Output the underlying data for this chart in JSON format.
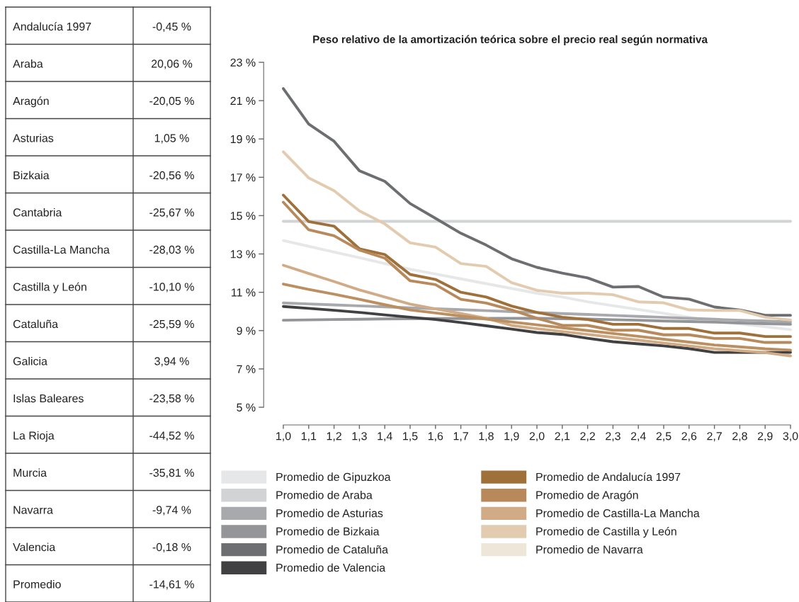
{
  "chart_data": [
    {
      "type": "other",
      "categories": [
        "Andalucía 1997",
        "Araba",
        "Aragón",
        "Asturias",
        "Bizkaia",
        "Cantabria",
        "Castilla-La Mancha",
        "Castilla y León",
        "Cataluña",
        "Galicia",
        "Islas Baleares",
        "La Rioja",
        "Murcia",
        "Navarra",
        "Valencia",
        "Promedio"
      ],
      "value_labels": [
        "-0,45 %",
        "20,06 %",
        "-20,05 %",
        "1,05 %",
        "-20,56 %",
        "-25,67 %",
        "-28,03 %",
        "-10,10 %",
        "-25,59 %",
        "3,94 %",
        "-23,58 %",
        "-44,52 %",
        "-35,81 %",
        "-9,74 %",
        "-0,18 %",
        "-14,61 %"
      ]
    },
    {
      "type": "line",
      "title": "Peso relativo de la amortización teórica sobre el precio real según normativa",
      "x": [
        1.0,
        1.1,
        1.2,
        1.3,
        1.4,
        1.5,
        1.6,
        1.7,
        1.8,
        1.9,
        2.0,
        2.1,
        2.2,
        2.3,
        2.4,
        2.5,
        2.6,
        2.7,
        2.8,
        2.9,
        3.0
      ],
      "xlim": [
        1.0,
        3.0
      ],
      "xticks": [
        {
          "value": 1.0,
          "label": "1,0"
        },
        {
          "value": 1.1,
          "label": "1,1"
        },
        {
          "value": 1.2,
          "label": "1,2"
        },
        {
          "value": 1.3,
          "label": "1,3"
        },
        {
          "value": 1.4,
          "label": "1,4"
        },
        {
          "value": 1.5,
          "label": "1,5"
        },
        {
          "value": 1.6,
          "label": "1,6"
        },
        {
          "value": 1.7,
          "label": "1,7"
        },
        {
          "value": 1.8,
          "label": "1,8"
        },
        {
          "value": 1.9,
          "label": "1,9"
        },
        {
          "value": 2.0,
          "label": "2,0"
        },
        {
          "value": 2.1,
          "label": "2,1"
        },
        {
          "value": 2.2,
          "label": "2,2"
        },
        {
          "value": 2.3,
          "label": "2,3"
        },
        {
          "value": 2.4,
          "label": "2,4"
        },
        {
          "value": 2.5,
          "label": "2,5"
        },
        {
          "value": 2.6,
          "label": "2,6"
        },
        {
          "value": 2.7,
          "label": "2,7"
        },
        {
          "value": 2.8,
          "label": "2,8"
        },
        {
          "value": 2.9,
          "label": "2,9"
        },
        {
          "value": 3.0,
          "label": "3,0"
        }
      ],
      "ylim": [
        5,
        23
      ],
      "yticks": [
        {
          "value": 5,
          "label": "5 %"
        },
        {
          "value": 7,
          "label": "7 %"
        },
        {
          "value": 9,
          "label": "9 %"
        },
        {
          "value": 11,
          "label": "11 %"
        },
        {
          "value": 13,
          "label": "13 %"
        },
        {
          "value": 15,
          "label": "15 %"
        },
        {
          "value": 17,
          "label": "17 %"
        },
        {
          "value": 19,
          "label": "19 %"
        },
        {
          "value": 21,
          "label": "21 %"
        },
        {
          "value": 23,
          "label": "23 %"
        }
      ],
      "grid": false,
      "legend": "bottom",
      "marker": "none",
      "line_style": "solid",
      "series": [
        {
          "name": "Promedio de Gipuzkoa",
          "color": "#e6e7e8",
          "values": [
            13.7,
            13.4,
            13.1,
            12.8,
            12.5,
            12.2,
            11.95,
            11.7,
            11.45,
            11.2,
            10.95,
            10.75,
            10.5,
            10.3,
            10.1,
            9.9,
            9.7,
            9.5,
            9.35,
            9.2,
            9.05
          ]
        },
        {
          "name": "Promedio de Araba",
          "color": "#d1d3d4",
          "values": [
            14.7,
            14.7,
            14.7,
            14.7,
            14.7,
            14.7,
            14.7,
            14.7,
            14.7,
            14.7,
            14.7,
            14.7,
            14.7,
            14.7,
            14.7,
            14.7,
            14.7,
            14.7,
            14.7,
            14.7,
            14.7
          ]
        },
        {
          "name": "Promedio de Asturias",
          "color": "#a7a9ac",
          "values": [
            10.44,
            10.39,
            10.34,
            10.29,
            10.24,
            10.19,
            10.14,
            10.09,
            10.04,
            9.99,
            9.94,
            9.89,
            9.84,
            9.79,
            9.74,
            9.69,
            9.64,
            9.59,
            9.54,
            9.5,
            9.45
          ]
        },
        {
          "name": "Promedio de Bizkaia",
          "color": "#939598",
          "values": [
            9.54,
            9.56,
            9.58,
            9.59,
            9.61,
            9.62,
            9.63,
            9.63,
            9.64,
            9.64,
            9.64,
            9.62,
            9.6,
            9.57,
            9.54,
            9.5,
            9.47,
            9.44,
            9.4,
            9.36,
            9.33
          ]
        },
        {
          "name": "Promedio de Cataluña",
          "color": "#6d6e71",
          "values": [
            21.63,
            19.78,
            18.88,
            17.34,
            16.79,
            15.63,
            14.86,
            14.08,
            13.46,
            12.75,
            12.3,
            12.0,
            11.75,
            11.27,
            11.3,
            10.75,
            10.64,
            10.23,
            10.08,
            9.8,
            9.8
          ]
        },
        {
          "name": "Promedio de Valencia",
          "color": "#414042",
          "values": [
            10.26,
            10.16,
            10.06,
            9.95,
            9.82,
            9.7,
            9.58,
            9.42,
            9.25,
            9.08,
            8.9,
            8.8,
            8.6,
            8.42,
            8.31,
            8.2,
            8.06,
            7.86,
            7.86,
            7.86,
            7.86
          ]
        },
        {
          "name": "Promedio de Andalucía 1997",
          "color": "#a0703a",
          "values": [
            16.07,
            14.69,
            14.45,
            13.27,
            12.97,
            11.93,
            11.67,
            11.0,
            10.75,
            10.28,
            9.95,
            9.7,
            9.58,
            9.33,
            9.33,
            9.11,
            9.11,
            8.87,
            8.87,
            8.69,
            8.69
          ]
        },
        {
          "name": "Promedio de Aragón",
          "color": "#b8895a",
          "values": [
            15.7,
            14.26,
            13.95,
            13.2,
            12.78,
            11.6,
            11.4,
            10.63,
            10.44,
            10.08,
            9.64,
            9.27,
            9.27,
            9.02,
            9.02,
            8.78,
            8.78,
            8.59,
            8.59,
            8.38,
            8.38
          ]
        },
        {
          "name": "Promedio de Castilla-La Mancha",
          "color": "#d1ab86",
          "values": [
            12.41,
            11.98,
            11.56,
            11.12,
            10.75,
            10.38,
            10.13,
            9.89,
            9.64,
            9.27,
            9.1,
            8.95,
            8.8,
            8.65,
            8.5,
            8.35,
            8.2,
            8.05,
            7.95,
            7.85,
            7.68
          ]
        },
        {
          "name": "Promedio de Castilla y León",
          "color": "#e2cbaf",
          "values": [
            18.33,
            16.97,
            16.3,
            15.25,
            14.57,
            13.58,
            13.36,
            12.5,
            12.35,
            11.5,
            11.1,
            10.95,
            10.95,
            10.87,
            10.5,
            10.45,
            10.08,
            10.05,
            10.05,
            9.7,
            9.55
          ]
        },
        {
          "name": "Promedio de Navarra",
          "color": "#efe6da",
          "values": [
            null,
            null,
            null,
            null,
            null,
            null,
            null,
            null,
            null,
            null,
            null,
            null,
            null,
            null,
            null,
            null,
            null,
            null,
            null,
            null,
            null
          ]
        },
        {
          "color": "#bb8f60",
          "values": [
            11.43,
            11.15,
            10.9,
            10.63,
            10.35,
            10.08,
            9.92,
            9.76,
            9.6,
            9.45,
            9.3,
            9.15,
            9.0,
            8.85,
            8.7,
            8.55,
            8.4,
            8.25,
            8.15,
            8.05,
            7.98
          ]
        }
      ]
    }
  ]
}
